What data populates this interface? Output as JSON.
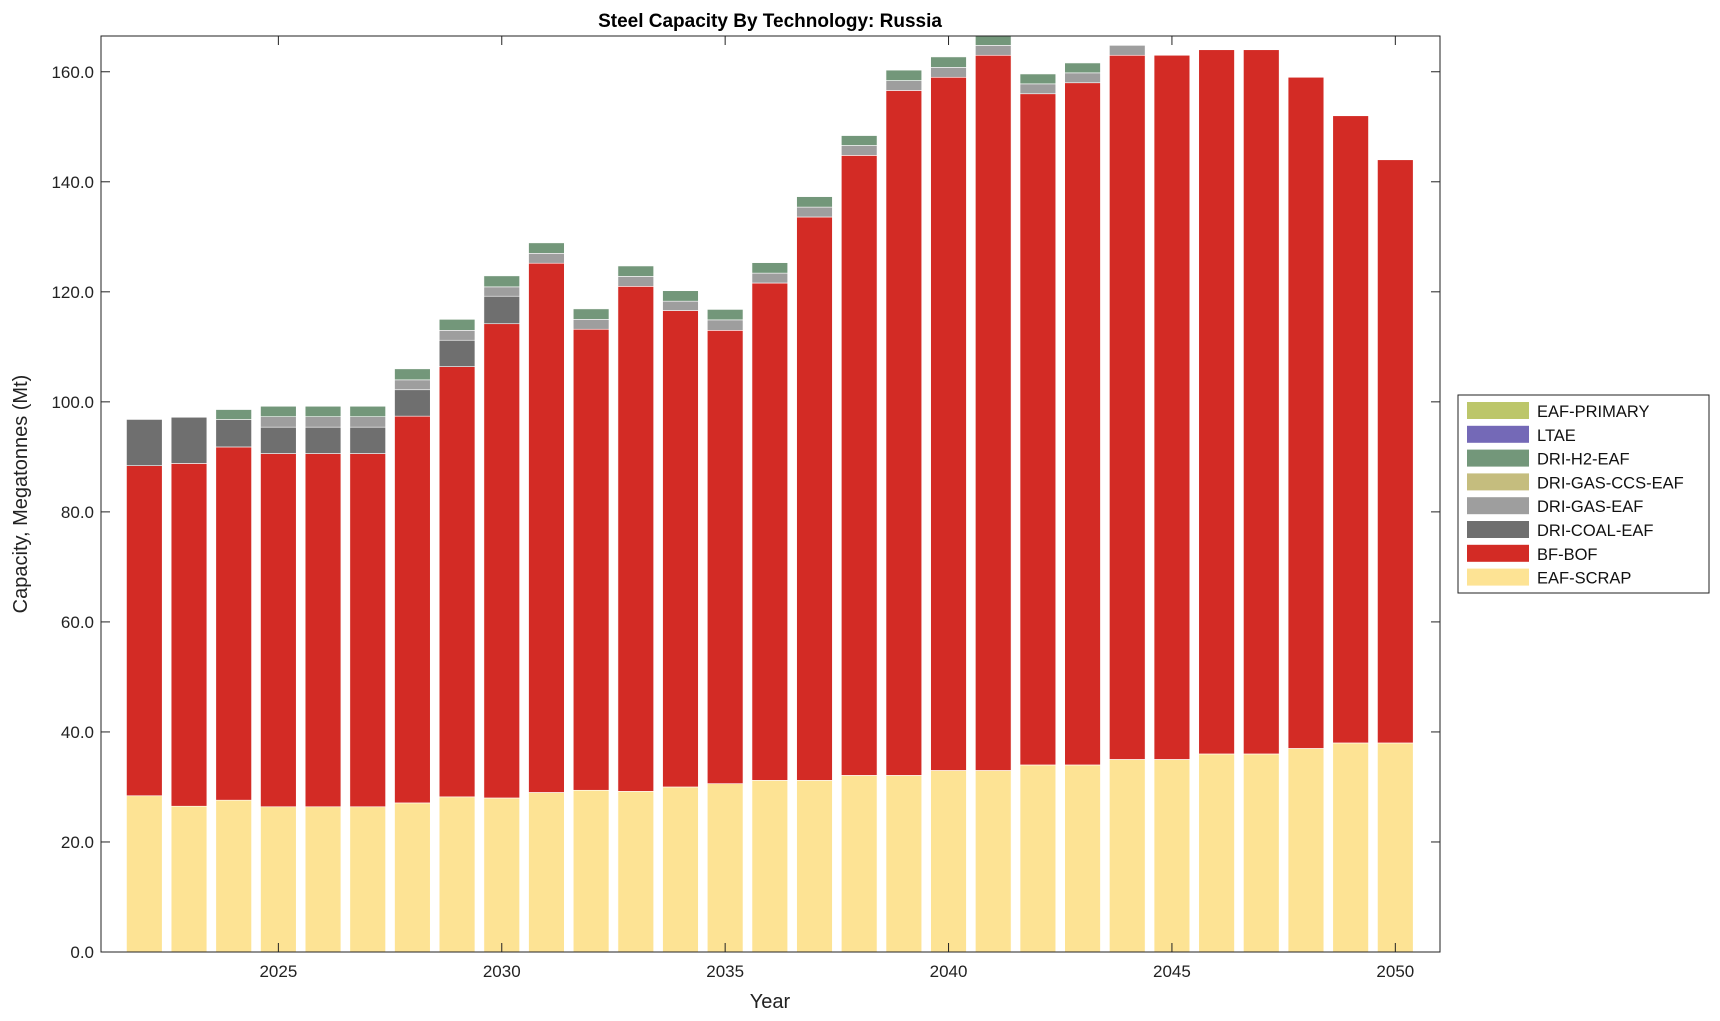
{
  "chart_data": {
    "type": "bar",
    "stacked": true,
    "title": "Steel Capacity By Technology: Russia",
    "xlabel": "Year",
    "ylabel": "Capacity, Megatonnes (Mt)",
    "ylim": [
      0,
      166.5
    ],
    "xlim": [
      2021.03,
      2051.0
    ],
    "yticks": [
      0,
      20,
      40,
      60,
      80,
      100,
      120,
      140,
      160
    ],
    "ytick_labels": [
      "0.0",
      "20.0",
      "40.0",
      "60.0",
      "80.0",
      "100.0",
      "120.0",
      "140.0",
      "160.0"
    ],
    "xticks": [
      2025,
      2030,
      2035,
      2040,
      2045,
      2050
    ],
    "xtick_labels": [
      "2025",
      "2030",
      "2035",
      "2040",
      "2045",
      "2050"
    ],
    "grid": false,
    "legend_placement": "right-outside",
    "categories": [
      2022,
      2023,
      2024,
      2025,
      2026,
      2027,
      2028,
      2029,
      2030,
      2031,
      2032,
      2033,
      2034,
      2035,
      2036,
      2037,
      2038,
      2039,
      2040,
      2041,
      2042,
      2043,
      2044,
      2045,
      2046,
      2047,
      2048,
      2049,
      2050
    ],
    "series": [
      {
        "name": "EAF-SCRAP",
        "color": "#fde394",
        "values": [
          28.4,
          26.5,
          27.6,
          26.4,
          26.4,
          26.4,
          27.1,
          28.2,
          28.0,
          29.0,
          29.4,
          29.2,
          30.0,
          30.6,
          31.2,
          31.2,
          32.1,
          32.1,
          33.0,
          33.0,
          34.0,
          34.0,
          35.0,
          35.0,
          36.0,
          36.0,
          37.0,
          38.0,
          38.0
        ]
      },
      {
        "name": "BF-BOF",
        "color": "#d32b25",
        "values": [
          60.0,
          62.3,
          64.2,
          64.2,
          64.2,
          64.2,
          70.3,
          78.2,
          86.2,
          96.2,
          83.8,
          91.8,
          86.6,
          82.4,
          90.4,
          102.4,
          112.7,
          124.5,
          126.0,
          130.0,
          122.0,
          124.0,
          128.0,
          128.0,
          128.0,
          128.0,
          122.0,
          114.0,
          106.0
        ]
      },
      {
        "name": "DRI-COAL-EAF",
        "color": "#6f6f6f",
        "values": [
          8.4,
          8.4,
          5.0,
          4.8,
          4.8,
          4.8,
          4.8,
          4.8,
          5.0,
          0,
          0,
          0,
          0,
          0,
          0,
          0,
          0,
          0,
          0,
          0,
          0,
          0,
          0,
          0,
          0,
          0,
          0,
          0,
          0
        ]
      },
      {
        "name": "DRI-GAS-EAF",
        "color": "#9e9e9e",
        "values": [
          0,
          0,
          0,
          1.9,
          1.9,
          1.9,
          1.8,
          1.8,
          1.7,
          1.8,
          1.8,
          1.8,
          1.7,
          1.9,
          1.8,
          1.8,
          1.8,
          1.8,
          1.8,
          1.8,
          1.8,
          1.8,
          1.8,
          0,
          0,
          0,
          0,
          0,
          0
        ]
      },
      {
        "name": "DRI-GAS-CCS-EAF",
        "color": "#c5bd7e",
        "values": [
          0,
          0,
          0,
          0,
          0,
          0,
          0,
          0,
          0,
          0,
          0,
          0,
          0,
          0,
          0,
          0,
          0,
          0,
          0,
          0,
          0,
          0,
          0,
          0,
          0,
          0,
          0,
          0,
          0
        ]
      },
      {
        "name": "DRI-H2-EAF",
        "color": "#73977a",
        "values": [
          0,
          0,
          1.8,
          1.9,
          1.9,
          1.9,
          2.0,
          2.0,
          2.0,
          1.9,
          1.9,
          1.9,
          1.9,
          1.9,
          1.9,
          1.9,
          1.8,
          1.9,
          1.9,
          1.9,
          1.8,
          1.8,
          0,
          0,
          0,
          0,
          0,
          0,
          0
        ]
      },
      {
        "name": "LTAE",
        "color": "#7469b7",
        "values": [
          0,
          0,
          0,
          0,
          0,
          0,
          0,
          0,
          0,
          0,
          0,
          0,
          0,
          0,
          0,
          0,
          0,
          0,
          0,
          0,
          0,
          0,
          0,
          0,
          0,
          0,
          0,
          0,
          0
        ]
      },
      {
        "name": "EAF-PRIMARY",
        "color": "#bcc66a",
        "values": [
          0,
          0,
          0,
          0,
          0,
          0,
          0,
          0,
          0,
          0,
          0,
          0,
          0,
          0,
          0,
          0,
          0,
          0,
          0,
          0,
          0,
          0,
          0,
          0,
          0,
          0,
          0,
          0,
          0
        ]
      }
    ],
    "legend_order": [
      "EAF-PRIMARY",
      "LTAE",
      "DRI-H2-EAF",
      "DRI-GAS-CCS-EAF",
      "DRI-GAS-EAF",
      "DRI-COAL-EAF",
      "BF-BOF",
      "EAF-SCRAP"
    ]
  }
}
